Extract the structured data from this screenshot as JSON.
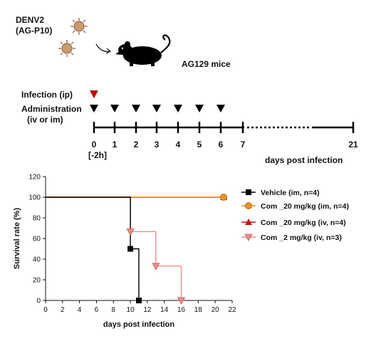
{
  "schematic": {
    "virus_label": [
      "DENV2",
      "(AG-P10)"
    ],
    "mice_label": "AG129 mice",
    "infection_label": "Infection (ip)",
    "administration_label": [
      "Administration",
      "(iv or im)"
    ],
    "timeline_ticks": [
      "0",
      "1",
      "2",
      "3",
      "4",
      "5",
      "6",
      "7",
      "21"
    ],
    "pre_dose_label": "[-2h]",
    "timeline_axis_label": "days post infection",
    "infection_days": [
      0
    ],
    "administration_days": [
      0,
      1,
      2,
      3,
      4,
      5,
      6
    ],
    "colors": {
      "infection": "#c00000",
      "administration": "#000000"
    }
  },
  "chart_data": {
    "type": "line",
    "xlabel": "days post infection",
    "ylabel": "Survival rate (%)",
    "xlim": [
      0,
      22
    ],
    "ylim": [
      0,
      120
    ],
    "xticks": [
      0,
      2,
      4,
      6,
      8,
      10,
      12,
      14,
      16,
      18,
      20,
      22
    ],
    "yticks": [
      0,
      20,
      40,
      60,
      80,
      100,
      120
    ],
    "grid": false,
    "legend_position": "right",
    "series": [
      {
        "name": "Vehicle (im, n=4)",
        "color": "#000000",
        "marker": "square",
        "x": [
          0,
          10,
          11
        ],
        "y": [
          100,
          50,
          0
        ]
      },
      {
        "name": "Com  _20 mg/kg (im, n=4)",
        "color": "#f0921e",
        "marker": "circle",
        "x": [
          0,
          21
        ],
        "y": [
          100,
          100
        ]
      },
      {
        "name": "Com  _20 mg/kg (iv, n=4)",
        "color": "#c0151b",
        "marker": "triangle-up",
        "x": [
          0,
          21
        ],
        "y": [
          100,
          100
        ]
      },
      {
        "name": "Com  _2 mg/kg (iv, n=3)",
        "color": "#f28c8c",
        "marker": "triangle-down",
        "x": [
          0,
          10,
          13,
          16
        ],
        "y": [
          100,
          66.7,
          33.3,
          0
        ]
      }
    ]
  }
}
